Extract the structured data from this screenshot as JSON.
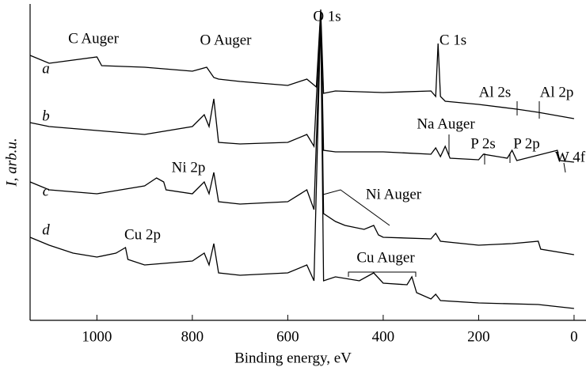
{
  "chart_data": {
    "type": "line",
    "xlabel": "Binding energy, eV",
    "ylabel": "I, arb.u.",
    "xlim": [
      1140,
      -25
    ],
    "ylim": [
      0,
      400
    ],
    "xticks": [
      1000,
      800,
      600,
      400,
      200,
      0
    ],
    "series": [
      {
        "name": "a",
        "color": "#000000",
        "x": [
          1140,
          1100,
          1000,
          990,
          900,
          800,
          770,
          755,
          745,
          700,
          600,
          560,
          540,
          531,
          525,
          500,
          400,
          300,
          290,
          285,
          280,
          270,
          200,
          120,
          75,
          0
        ],
        "values": [
          335,
          325,
          333,
          322,
          320,
          315,
          320,
          307,
          305,
          302,
          297,
          305,
          295,
          393,
          287,
          290,
          288,
          290,
          283,
          350,
          283,
          277,
          273,
          267,
          263,
          255
        ]
      },
      {
        "name": "b",
        "color": "#000000",
        "x": [
          1140,
          1100,
          1000,
          900,
          800,
          775,
          765,
          755,
          745,
          700,
          600,
          560,
          545,
          531,
          525,
          500,
          400,
          300,
          290,
          280,
          270,
          260,
          200,
          190,
          140,
          130,
          120,
          35,
          30,
          0
        ],
        "values": [
          250,
          245,
          240,
          235,
          245,
          260,
          245,
          280,
          225,
          223,
          225,
          235,
          220,
          390,
          215,
          213,
          213,
          210,
          218,
          207,
          220,
          205,
          203,
          210,
          205,
          215,
          202,
          215,
          202,
          200
        ]
      },
      {
        "name": "c",
        "color": "#000000",
        "x": [
          1140,
          1100,
          1000,
          900,
          875,
          860,
          855,
          800,
          775,
          765,
          755,
          745,
          700,
          600,
          560,
          545,
          531,
          525,
          500,
          480,
          440,
          420,
          410,
          400,
          300,
          290,
          280,
          200,
          130,
          75,
          70,
          0
        ],
        "values": [
          175,
          165,
          160,
          170,
          180,
          175,
          165,
          160,
          175,
          160,
          187,
          150,
          147,
          150,
          165,
          140,
          387,
          135,
          125,
          120,
          115,
          120,
          108,
          105,
          103,
          110,
          100,
          95,
          97,
          100,
          90,
          83
        ]
      },
      {
        "name": "d",
        "color": "#000000",
        "x": [
          1140,
          1100,
          1050,
          1000,
          960,
          940,
          935,
          900,
          800,
          775,
          765,
          755,
          745,
          700,
          600,
          560,
          545,
          531,
          525,
          500,
          450,
          420,
          400,
          350,
          340,
          330,
          300,
          290,
          280,
          200,
          75,
          0
        ],
        "values": [
          105,
          95,
          85,
          80,
          85,
          92,
          77,
          70,
          75,
          85,
          70,
          97,
          60,
          57,
          60,
          70,
          50,
          383,
          50,
          55,
          50,
          60,
          47,
          45,
          55,
          35,
          27,
          33,
          25,
          22,
          20,
          15
        ]
      }
    ],
    "annotations": [
      "C Auger",
      "O Auger",
      "O 1s",
      "C 1s",
      "Al 2s",
      "Al 2p",
      "Na Auger",
      "P 2s",
      "P 2p",
      "W 4f",
      "Ni 2p",
      "Ni Auger",
      "Cu 2p",
      "Cu Auger"
    ]
  }
}
